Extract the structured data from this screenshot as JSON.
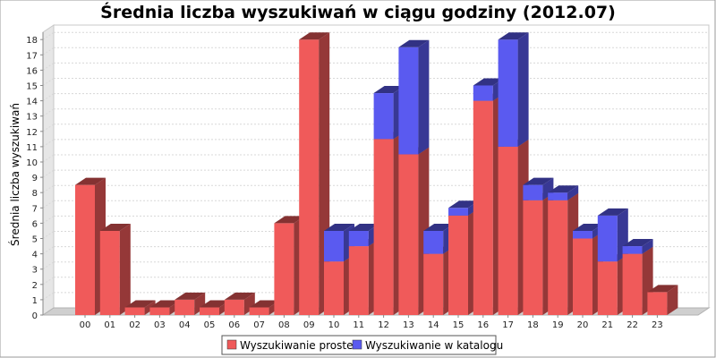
{
  "chart_data": {
    "type": "bar",
    "stacked": true,
    "title": "Średnia liczba wyszukiwań w ciągu godziny (2012.07)",
    "ylabel": "Średnia liczba wyszukiwań",
    "xlabel": "",
    "ylim": [
      0,
      19
    ],
    "yticks": [
      0,
      1,
      2,
      3,
      4,
      5,
      6,
      7,
      8,
      9,
      10,
      11,
      12,
      13,
      14,
      15,
      16,
      17,
      18
    ],
    "grid": true,
    "legend_position": "bottom",
    "categories": [
      "00",
      "01",
      "02",
      "03",
      "04",
      "05",
      "06",
      "07",
      "08",
      "09",
      "10",
      "11",
      "12",
      "13",
      "14",
      "15",
      "16",
      "17",
      "18",
      "19",
      "20",
      "21",
      "22",
      "23"
    ],
    "series": [
      {
        "name": "Wyszukiwanie proste",
        "color": "#f05a5a",
        "values": [
          8.5,
          5.5,
          0.5,
          0.5,
          1,
          0.5,
          1,
          0.5,
          6,
          18,
          3.5,
          4.5,
          11.5,
          10.5,
          4,
          6.5,
          14,
          11,
          7.5,
          7.5,
          5,
          3.5,
          4,
          1.5
        ]
      },
      {
        "name": "Wyszukiwanie w katalogu",
        "color": "#5a5af0",
        "values": [
          0,
          0,
          0,
          0,
          0,
          0,
          0,
          0,
          0,
          0,
          2,
          1,
          3,
          7,
          1.5,
          0.5,
          1,
          7,
          1,
          0.5,
          0.5,
          3,
          0.5,
          0
        ]
      }
    ]
  }
}
